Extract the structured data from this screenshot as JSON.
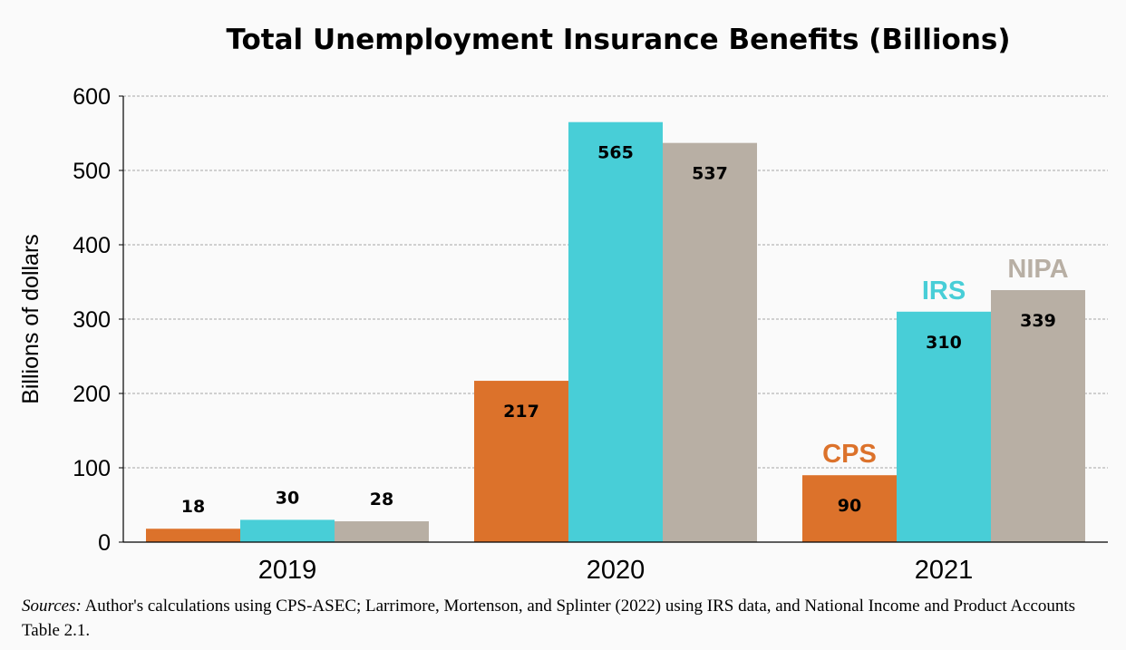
{
  "chart_data": {
    "type": "bar",
    "title": "Total Unemployment Insurance Benefits (Billions)",
    "xlabel": "",
    "ylabel": "Billions of dollars",
    "categories": [
      "2019",
      "2020",
      "2021"
    ],
    "ylim": [
      0,
      600
    ],
    "yticks": [
      "0",
      "100",
      "200",
      "300",
      "400",
      "500",
      "600"
    ],
    "grid": true,
    "series": [
      {
        "name": "CPS",
        "color": "#dc722b",
        "values": [
          18,
          217,
          90
        ]
      },
      {
        "name": "IRS",
        "color": "#48ced7",
        "values": [
          30,
          565,
          310
        ]
      },
      {
        "name": "NIPA",
        "color": "#b8afa4",
        "values": [
          28,
          537,
          339
        ]
      }
    ],
    "data_labels": [
      [
        "18",
        "217",
        "90"
      ],
      [
        "30",
        "565",
        "310"
      ],
      [
        "28",
        "537",
        "339"
      ]
    ]
  },
  "sources": {
    "label": "Sources:",
    "text": " Author's calculations using CPS-ASEC; Larrimore, Mortenson, and Splinter (2022) using IRS data, and National Income and Product Accounts Table 2.1."
  }
}
